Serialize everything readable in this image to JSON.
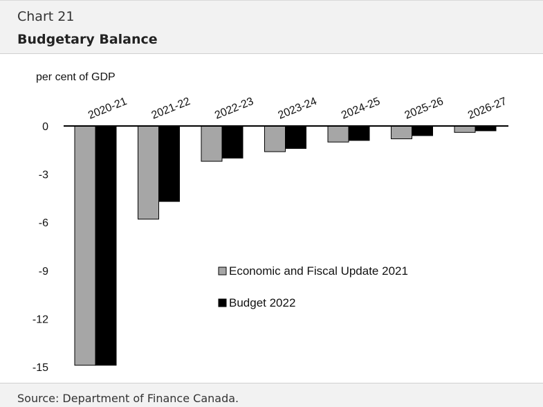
{
  "header": {
    "chart_number": "Chart 21",
    "title": "Budgetary Balance"
  },
  "footer": {
    "source": "Source: Department of Finance Canada."
  },
  "chart_data": {
    "type": "bar",
    "unit_label": "per cent of GDP",
    "categories": [
      "2020-21",
      "2021-22",
      "2022-23",
      "2023-24",
      "2024-25",
      "2025-26",
      "2026-27"
    ],
    "series": [
      {
        "name": "Economic and Fiscal Update 2021",
        "color": "#a6a6a6",
        "values": [
          -14.9,
          -5.8,
          -2.2,
          -1.6,
          -1.0,
          -0.8,
          -0.4
        ]
      },
      {
        "name": "Budget 2022",
        "color": "#000000",
        "values": [
          -14.9,
          -4.7,
          -2.0,
          -1.4,
          -0.9,
          -0.6,
          -0.3
        ]
      }
    ],
    "y_ticks": [
      0,
      -3,
      -6,
      -9,
      -12,
      -15
    ],
    "ylim": [
      -15,
      0
    ],
    "grid": false,
    "legend_position": "center-right"
  }
}
